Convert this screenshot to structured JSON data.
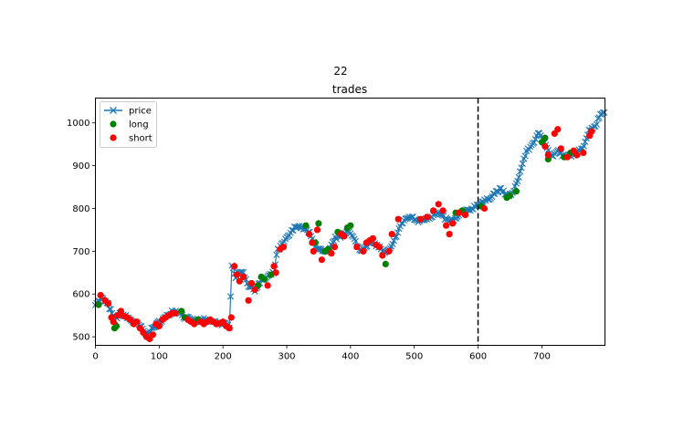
{
  "suptitle": "22",
  "chart_data": {
    "type": "line",
    "title": "trades",
    "xlabel": "",
    "ylabel": "",
    "xlim": [
      0,
      799
    ],
    "ylim": [
      480,
      1058
    ],
    "xticks": [
      0,
      100,
      200,
      300,
      400,
      500,
      600,
      700
    ],
    "yticks": [
      500,
      600,
      700,
      800,
      900,
      1000
    ],
    "grid": false,
    "legend_position": "top-left",
    "vline": {
      "x": 600,
      "style": "dashed",
      "color": "#000000"
    },
    "series": [
      {
        "name": "price",
        "kind": "line-x-markers",
        "color": "#1f77b4",
        "anchors": [
          [
            0,
            578
          ],
          [
            10,
            590
          ],
          [
            20,
            575
          ],
          [
            30,
            540
          ],
          [
            40,
            555
          ],
          [
            50,
            545
          ],
          [
            60,
            535
          ],
          [
            70,
            525
          ],
          [
            80,
            505
          ],
          [
            90,
            520
          ],
          [
            100,
            535
          ],
          [
            110,
            545
          ],
          [
            120,
            560
          ],
          [
            130,
            560
          ],
          [
            140,
            545
          ],
          [
            150,
            540
          ],
          [
            160,
            535
          ],
          [
            170,
            540
          ],
          [
            180,
            535
          ],
          [
            190,
            533
          ],
          [
            200,
            530
          ],
          [
            210,
            525
          ],
          [
            214,
            670
          ],
          [
            220,
            640
          ],
          [
            230,
            655
          ],
          [
            240,
            620
          ],
          [
            250,
            610
          ],
          [
            260,
            630
          ],
          [
            270,
            640
          ],
          [
            280,
            650
          ],
          [
            285,
            700
          ],
          [
            295,
            720
          ],
          [
            305,
            740
          ],
          [
            315,
            760
          ],
          [
            325,
            755
          ],
          [
            335,
            745
          ],
          [
            345,
            710
          ],
          [
            355,
            700
          ],
          [
            365,
            695
          ],
          [
            375,
            730
          ],
          [
            385,
            735
          ],
          [
            395,
            750
          ],
          [
            405,
            730
          ],
          [
            415,
            700
          ],
          [
            425,
            715
          ],
          [
            435,
            720
          ],
          [
            445,
            710
          ],
          [
            455,
            695
          ],
          [
            465,
            710
          ],
          [
            475,
            750
          ],
          [
            485,
            775
          ],
          [
            495,
            780
          ],
          [
            505,
            770
          ],
          [
            515,
            775
          ],
          [
            525,
            780
          ],
          [
            535,
            790
          ],
          [
            545,
            780
          ],
          [
            555,
            770
          ],
          [
            565,
            775
          ],
          [
            575,
            790
          ],
          [
            585,
            795
          ],
          [
            595,
            805
          ],
          [
            605,
            815
          ],
          [
            615,
            820
          ],
          [
            625,
            835
          ],
          [
            635,
            845
          ],
          [
            645,
            830
          ],
          [
            655,
            835
          ],
          [
            665,
            880
          ],
          [
            675,
            930
          ],
          [
            685,
            950
          ],
          [
            695,
            975
          ],
          [
            705,
            955
          ],
          [
            715,
            920
          ],
          [
            725,
            935
          ],
          [
            735,
            920
          ],
          [
            745,
            925
          ],
          [
            755,
            930
          ],
          [
            765,
            945
          ],
          [
            775,
            985
          ],
          [
            785,
            995
          ],
          [
            790,
            1015
          ],
          [
            799,
            1030
          ]
        ]
      },
      {
        "name": "long",
        "kind": "markers",
        "color": "#008000",
        "points": [
          [
            5,
            575
          ],
          [
            30,
            520
          ],
          [
            33,
            525
          ],
          [
            135,
            560
          ],
          [
            140,
            545
          ],
          [
            160,
            540
          ],
          [
            255,
            620
          ],
          [
            260,
            640
          ],
          [
            265,
            635
          ],
          [
            275,
            645
          ],
          [
            330,
            760
          ],
          [
            345,
            720
          ],
          [
            350,
            765
          ],
          [
            360,
            700
          ],
          [
            365,
            705
          ],
          [
            380,
            745
          ],
          [
            395,
            755
          ],
          [
            400,
            760
          ],
          [
            455,
            670
          ],
          [
            565,
            790
          ],
          [
            575,
            795
          ],
          [
            605,
            805
          ],
          [
            645,
            825
          ],
          [
            650,
            830
          ],
          [
            660,
            840
          ],
          [
            700,
            955
          ],
          [
            705,
            965
          ],
          [
            710,
            915
          ],
          [
            735,
            920
          ],
          [
            745,
            930
          ]
        ]
      },
      {
        "name": "short",
        "kind": "markers",
        "color": "#ff0000",
        "points": [
          [
            8,
            597
          ],
          [
            15,
            585
          ],
          [
            20,
            578
          ],
          [
            25,
            545
          ],
          [
            28,
            535
          ],
          [
            35,
            550
          ],
          [
            40,
            560
          ],
          [
            45,
            548
          ],
          [
            50,
            545
          ],
          [
            55,
            540
          ],
          [
            60,
            530
          ],
          [
            65,
            535
          ],
          [
            70,
            520
          ],
          [
            75,
            510
          ],
          [
            80,
            500
          ],
          [
            85,
            495
          ],
          [
            90,
            505
          ],
          [
            95,
            530
          ],
          [
            100,
            525
          ],
          [
            105,
            540
          ],
          [
            110,
            545
          ],
          [
            115,
            550
          ],
          [
            120,
            555
          ],
          [
            125,
            555
          ],
          [
            145,
            540
          ],
          [
            150,
            535
          ],
          [
            155,
            530
          ],
          [
            165,
            535
          ],
          [
            170,
            530
          ],
          [
            175,
            535
          ],
          [
            180,
            540
          ],
          [
            185,
            535
          ],
          [
            190,
            530
          ],
          [
            195,
            532
          ],
          [
            200,
            535
          ],
          [
            205,
            525
          ],
          [
            210,
            520
          ],
          [
            213,
            545
          ],
          [
            218,
            665
          ],
          [
            222,
            645
          ],
          [
            226,
            630
          ],
          [
            232,
            640
          ],
          [
            240,
            585
          ],
          [
            245,
            625
          ],
          [
            250,
            610
          ],
          [
            270,
            620
          ],
          [
            280,
            665
          ],
          [
            283,
            650
          ],
          [
            290,
            705
          ],
          [
            295,
            710
          ],
          [
            335,
            740
          ],
          [
            340,
            720
          ],
          [
            342,
            700
          ],
          [
            348,
            750
          ],
          [
            355,
            680
          ],
          [
            370,
            695
          ],
          [
            375,
            710
          ],
          [
            385,
            740
          ],
          [
            390,
            735
          ],
          [
            410,
            710
          ],
          [
            420,
            700
          ],
          [
            425,
            720
          ],
          [
            430,
            725
          ],
          [
            435,
            730
          ],
          [
            440,
            715
          ],
          [
            445,
            710
          ],
          [
            450,
            690
          ],
          [
            460,
            700
          ],
          [
            465,
            740
          ],
          [
            475,
            775
          ],
          [
            510,
            775
          ],
          [
            520,
            780
          ],
          [
            530,
            795
          ],
          [
            538,
            810
          ],
          [
            545,
            795
          ],
          [
            550,
            760
          ],
          [
            555,
            740
          ],
          [
            560,
            765
          ],
          [
            570,
            790
          ],
          [
            580,
            785
          ],
          [
            610,
            800
          ],
          [
            705,
            945
          ],
          [
            710,
            925
          ],
          [
            720,
            975
          ],
          [
            725,
            985
          ],
          [
            730,
            940
          ],
          [
            740,
            920
          ],
          [
            750,
            935
          ],
          [
            755,
            925
          ],
          [
            765,
            930
          ],
          [
            775,
            970
          ],
          [
            778,
            980
          ]
        ]
      }
    ]
  }
}
